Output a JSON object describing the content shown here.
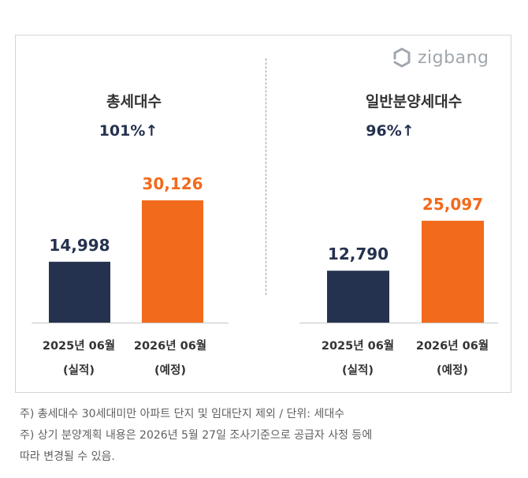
{
  "logo": {
    "text": "zigbang",
    "icon": "zigbang-logo-icon"
  },
  "panels": [
    {
      "title": "총세대수",
      "growth": "101%↑"
    },
    {
      "title": "일반분양세대수",
      "growth": "96%↑"
    }
  ],
  "chart_data": [
    {
      "type": "bar",
      "title": "총세대수",
      "categories": [
        [
          "2025년 06월",
          "(실적)"
        ],
        [
          "2026년 06월",
          "(예정)"
        ]
      ],
      "values": [
        14998,
        30126
      ],
      "value_labels": [
        "14,998",
        "30,126"
      ],
      "colors": [
        "#25324f",
        "#f26a1b"
      ],
      "annotation": "101%↑",
      "grid": false,
      "legend": "none"
    },
    {
      "type": "bar",
      "title": "일반분양세대수",
      "categories": [
        [
          "2025년 06월",
          "(실적)"
        ],
        [
          "2026년 06월",
          "(예정)"
        ]
      ],
      "values": [
        12790,
        25097
      ],
      "value_labels": [
        "12,790",
        "25,097"
      ],
      "colors": [
        "#25324f",
        "#f26a1b"
      ],
      "annotation": "96%↑",
      "grid": false,
      "legend": "none"
    }
  ],
  "notes": [
    "주) 총세대수 30세대미만 아파트  단지 및 임대단지 제외 / 단위: 세대수",
    "주) 상기 분양계획 내용은 2026년 5월 27일 조사기준으로 공급자 사정 등에",
    "따라 변경될 수 있음."
  ]
}
